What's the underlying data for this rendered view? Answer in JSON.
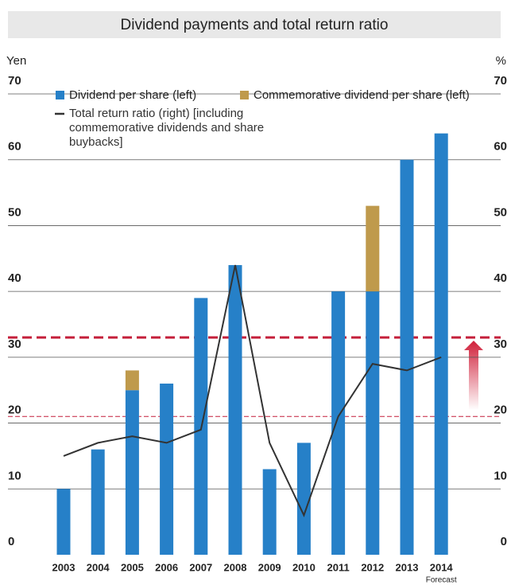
{
  "chart_data": {
    "type": "bar",
    "title": "Dividend payments and total return ratio",
    "y_label": "Yen",
    "y2_label": "%",
    "categories": [
      "2003",
      "2004",
      "2005",
      "2006",
      "2007",
      "2008",
      "2009",
      "2010",
      "2011",
      "2012",
      "2013",
      "2014"
    ],
    "annotation": "Forecast",
    "series": [
      {
        "name": "Dividend per share (left)",
        "color": "#2680c8",
        "type": "bar",
        "values": [
          10,
          16,
          25,
          26,
          39,
          44,
          13,
          17,
          40,
          40,
          60,
          64
        ]
      },
      {
        "name": "Commemorative dividend per share (left)",
        "color": "#bf9a4c",
        "type": "bar",
        "stacked": true,
        "values": [
          null,
          null,
          3,
          null,
          null,
          null,
          null,
          null,
          null,
          13,
          null,
          null
        ]
      },
      {
        "name": "Total return ratio (right) [including commemorative dividends and share buybacks]",
        "color": "#333333",
        "type": "line",
        "axis": "y2",
        "values": [
          15,
          17,
          18,
          17,
          19,
          44,
          17,
          6,
          21,
          29,
          28,
          30
        ]
      }
    ],
    "reference_lines": [
      {
        "value": 33,
        "color": "#c41e3a",
        "width": 3
      },
      {
        "value": 21,
        "color": "#c41e3a",
        "width": 1
      }
    ],
    "ylim": [
      0,
      70
    ],
    "yticks": [
      0,
      10,
      20,
      30,
      40,
      50,
      60,
      70
    ],
    "y2lim": [
      0,
      70
    ],
    "y2ticks": [
      0,
      10,
      20,
      30,
      40,
      50,
      60,
      70
    ],
    "grid": true
  }
}
